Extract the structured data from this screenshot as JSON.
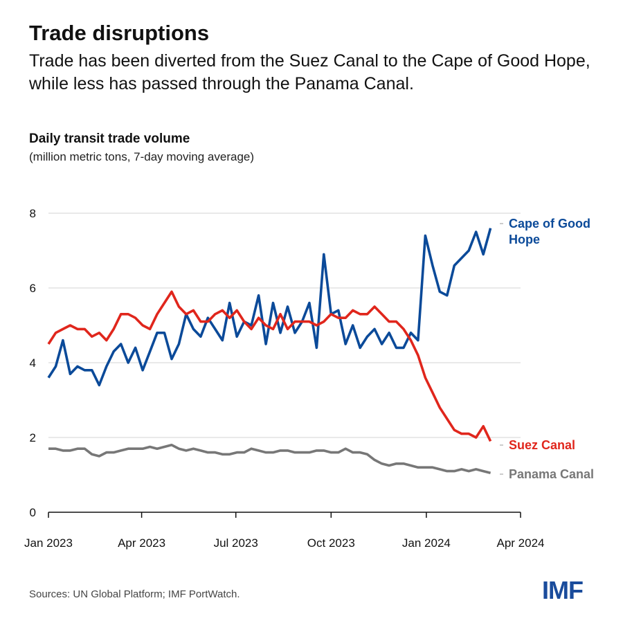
{
  "title": "Trade disruptions",
  "subtitle": "Trade has been diverted from the Suez Canal to the Cape of Good Hope, while less has passed through the Panama Canal.",
  "source": "Sources: UN Global Platform; IMF PortWatch.",
  "logo": "IMF",
  "chart_data": {
    "type": "line",
    "title": "Daily transit trade volume",
    "ylabel": "(million metric tons, 7-day moving average)",
    "ylim": [
      0,
      8
    ],
    "yticks": [
      "0",
      "2",
      "4",
      "6",
      "8"
    ],
    "xlim": [
      "2023-01-01",
      "2024-04-01"
    ],
    "xticks": [
      {
        "date": "2023-01-01",
        "label": "Jan 2023"
      },
      {
        "date": "2023-04-01",
        "label": "Apr 2023"
      },
      {
        "date": "2023-07-01",
        "label": "Jul 2023"
      },
      {
        "date": "2023-10-01",
        "label": "Oct 2023"
      },
      {
        "date": "2024-01-01",
        "label": "Jan 2024"
      },
      {
        "date": "2024-04-01",
        "label": "Apr 2024"
      }
    ],
    "grid": true,
    "x": [
      "2023-01-01",
      "2023-01-08",
      "2023-01-15",
      "2023-01-22",
      "2023-01-29",
      "2023-02-05",
      "2023-02-12",
      "2023-02-19",
      "2023-02-26",
      "2023-03-05",
      "2023-03-12",
      "2023-03-19",
      "2023-03-26",
      "2023-04-02",
      "2023-04-09",
      "2023-04-16",
      "2023-04-23",
      "2023-04-30",
      "2023-05-07",
      "2023-05-14",
      "2023-05-21",
      "2023-05-28",
      "2023-06-04",
      "2023-06-11",
      "2023-06-18",
      "2023-06-25",
      "2023-07-02",
      "2023-07-09",
      "2023-07-16",
      "2023-07-23",
      "2023-07-30",
      "2023-08-06",
      "2023-08-13",
      "2023-08-20",
      "2023-08-27",
      "2023-09-03",
      "2023-09-10",
      "2023-09-17",
      "2023-09-24",
      "2023-10-01",
      "2023-10-08",
      "2023-10-15",
      "2023-10-22",
      "2023-10-29",
      "2023-11-05",
      "2023-11-12",
      "2023-11-19",
      "2023-11-26",
      "2023-12-03",
      "2023-12-10",
      "2023-12-17",
      "2023-12-24",
      "2023-12-31",
      "2024-01-07",
      "2024-01-14",
      "2024-01-21",
      "2024-01-28",
      "2024-02-04",
      "2024-02-11",
      "2024-02-18",
      "2024-02-25",
      "2024-03-03"
    ],
    "series": [
      {
        "name": "Cape of Good Hope",
        "color": "#0b4a99",
        "values": [
          3.6,
          3.9,
          4.6,
          3.7,
          3.9,
          3.8,
          3.8,
          3.4,
          3.9,
          4.3,
          4.5,
          4.0,
          4.4,
          3.8,
          4.3,
          4.8,
          4.8,
          4.1,
          4.5,
          5.3,
          4.9,
          4.7,
          5.2,
          4.9,
          4.6,
          5.6,
          4.7,
          5.1,
          5.0,
          5.8,
          4.5,
          5.6,
          4.8,
          5.5,
          4.8,
          5.1,
          5.6,
          4.4,
          6.9,
          5.3,
          5.4,
          4.5,
          5.0,
          4.4,
          4.7,
          4.9,
          4.5,
          4.8,
          4.4,
          4.4,
          4.8,
          4.6,
          7.4,
          6.6,
          5.9,
          5.8,
          6.6,
          6.8,
          7.0,
          7.5,
          6.9,
          7.6
        ]
      },
      {
        "name": "Suez Canal",
        "color": "#e0261c",
        "values": [
          4.5,
          4.8,
          4.9,
          5.0,
          4.9,
          4.9,
          4.7,
          4.8,
          4.6,
          4.9,
          5.3,
          5.3,
          5.2,
          5.0,
          4.9,
          5.3,
          5.6,
          5.9,
          5.5,
          5.3,
          5.4,
          5.1,
          5.1,
          5.3,
          5.4,
          5.2,
          5.4,
          5.1,
          4.9,
          5.2,
          5.0,
          4.9,
          5.3,
          4.9,
          5.1,
          5.1,
          5.1,
          5.0,
          5.1,
          5.3,
          5.2,
          5.2,
          5.4,
          5.3,
          5.3,
          5.5,
          5.3,
          5.1,
          5.1,
          4.9,
          4.6,
          4.2,
          3.6,
          3.2,
          2.8,
          2.5,
          2.2,
          2.1,
          2.1,
          2.0,
          2.3,
          1.9
        ]
      },
      {
        "name": "Panama Canal",
        "color": "#777777",
        "values": [
          1.7,
          1.7,
          1.65,
          1.65,
          1.7,
          1.7,
          1.55,
          1.5,
          1.6,
          1.6,
          1.65,
          1.7,
          1.7,
          1.7,
          1.75,
          1.7,
          1.75,
          1.8,
          1.7,
          1.65,
          1.7,
          1.65,
          1.6,
          1.6,
          1.55,
          1.55,
          1.6,
          1.6,
          1.7,
          1.65,
          1.6,
          1.6,
          1.65,
          1.65,
          1.6,
          1.6,
          1.6,
          1.65,
          1.65,
          1.6,
          1.6,
          1.7,
          1.6,
          1.6,
          1.55,
          1.4,
          1.3,
          1.25,
          1.3,
          1.3,
          1.25,
          1.2,
          1.2,
          1.2,
          1.15,
          1.1,
          1.1,
          1.15,
          1.1,
          1.15,
          1.1,
          1.05
        ]
      }
    ]
  }
}
